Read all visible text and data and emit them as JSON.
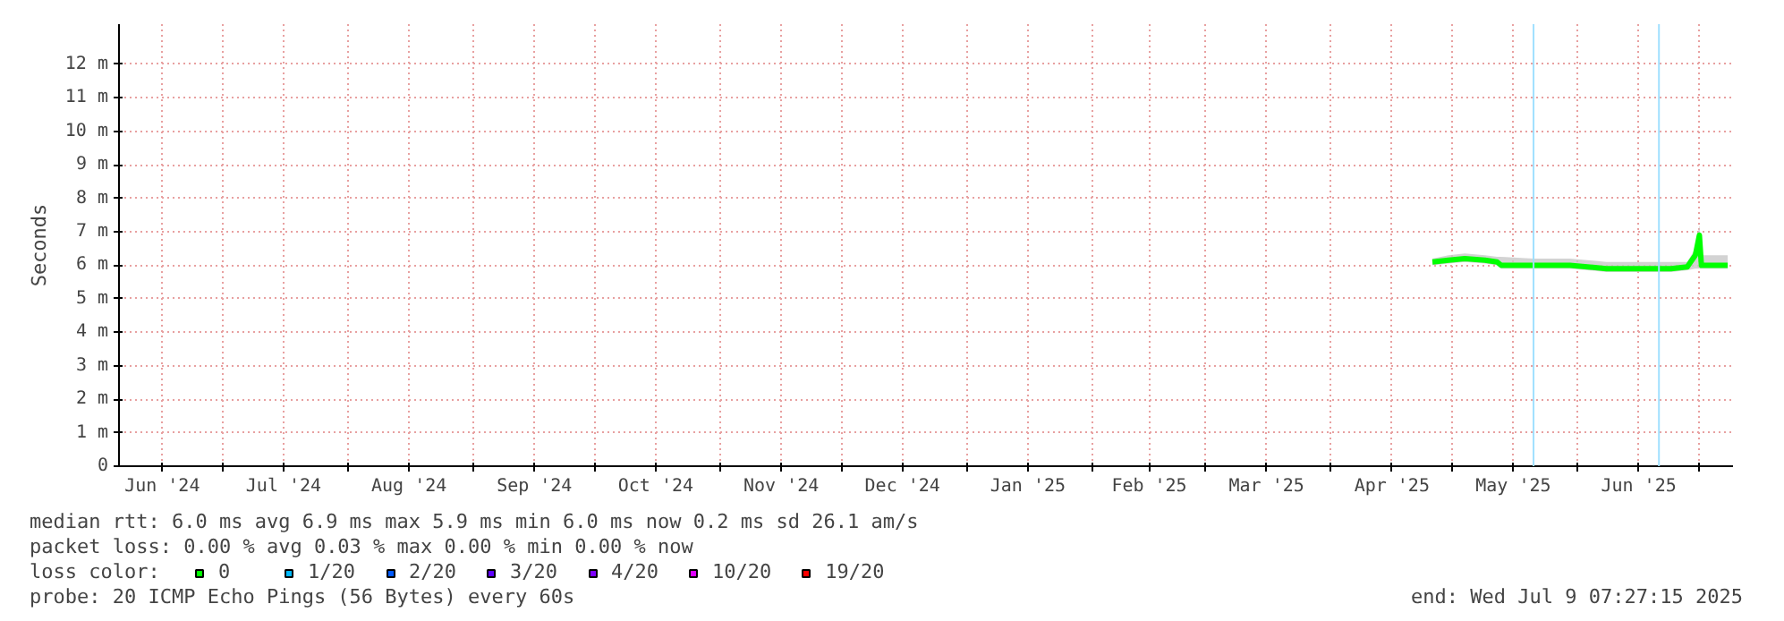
{
  "chart_data": {
    "type": "line",
    "ylabel": "Seconds",
    "xlim": [
      "2024-06-05T07:27",
      "2025-07-09T07:27"
    ],
    "xticks": [
      {
        "value": "2024-06-16",
        "label": "Jun '24"
      },
      {
        "value": "2024-07-01",
        "label": null
      },
      {
        "value": "2024-07-16",
        "label": "Jul '24"
      },
      {
        "value": "2024-08-01",
        "label": null
      },
      {
        "value": "2024-08-16",
        "label": "Aug '24"
      },
      {
        "value": "2024-09-01",
        "label": null
      },
      {
        "value": "2024-09-16",
        "label": "Sep '24"
      },
      {
        "value": "2024-10-01",
        "label": null
      },
      {
        "value": "2024-10-16",
        "label": "Oct '24"
      },
      {
        "value": "2024-11-01",
        "label": null
      },
      {
        "value": "2024-11-16",
        "label": "Nov '24"
      },
      {
        "value": "2024-12-01",
        "label": null
      },
      {
        "value": "2024-12-16",
        "label": "Dec '24"
      },
      {
        "value": "2025-01-01",
        "label": null
      },
      {
        "value": "2025-01-16",
        "label": "Jan '25"
      },
      {
        "value": "2025-02-01",
        "label": null
      },
      {
        "value": "2025-02-15",
        "label": "Feb '25"
      },
      {
        "value": "2025-03-01",
        "label": null
      },
      {
        "value": "2025-03-16",
        "label": "Mar '25"
      },
      {
        "value": "2025-04-01",
        "label": null
      },
      {
        "value": "2025-04-16",
        "label": "Apr '25"
      },
      {
        "value": "2025-05-01",
        "label": null
      },
      {
        "value": "2025-05-16",
        "label": "May '25"
      },
      {
        "value": "2025-06-01",
        "label": null
      },
      {
        "value": "2025-06-16",
        "label": "Jun '25"
      },
      {
        "value": "2025-07-01",
        "label": null
      }
    ],
    "ylim": [
      0,
      13.2
    ],
    "yticks": [
      0,
      {
        "value": 1,
        "label": "1 m"
      },
      {
        "value": 2,
        "label": "2 m"
      },
      {
        "value": 3,
        "label": "3 m"
      },
      {
        "value": 4,
        "label": "4 m"
      },
      {
        "value": 5,
        "label": "5 m"
      },
      {
        "value": 6,
        "label": "6 m"
      },
      {
        "value": 7,
        "label": "7 m"
      },
      {
        "value": 8,
        "label": "8 m"
      },
      {
        "value": 9,
        "label": "9 m"
      },
      {
        "value": 10,
        "label": "10 m"
      },
      {
        "value": 11,
        "label": "11 m"
      },
      {
        "value": 12,
        "label": "12 m"
      }
    ],
    "grid": true,
    "legend": "bottom",
    "legend_title": "loss color:",
    "series": [
      {
        "name": "0",
        "color": "#00ff00",
        "x": [
          "2025-04-26",
          "2025-04-30",
          "2025-05-04",
          "2025-05-09",
          "2025-05-12",
          "2025-05-13",
          "2025-05-21",
          "2025-05-30",
          "2025-06-08",
          "2025-06-17",
          "2025-06-24",
          "2025-06-28",
          "2025-06-30",
          "2025-07-01T00:00",
          "2025-07-01T12:00",
          "2025-07-08"
        ],
        "values": [
          6.1,
          6.15,
          6.2,
          6.15,
          6.1,
          6.0,
          6.0,
          6.0,
          5.9,
          5.9,
          5.9,
          5.95,
          6.3,
          6.9,
          6.0,
          6.0
        ],
        "lower": [
          6.0,
          6.05,
          6.1,
          6.05,
          6.0,
          5.9,
          5.9,
          5.9,
          5.8,
          5.8,
          5.8,
          5.85,
          5.9,
          5.9,
          5.9,
          5.9
        ],
        "upper": [
          6.2,
          6.3,
          6.35,
          6.3,
          6.25,
          6.25,
          6.2,
          6.2,
          6.1,
          6.1,
          6.1,
          6.1,
          6.5,
          7.2,
          6.3,
          6.3
        ]
      },
      {
        "name": "1/20",
        "color": "#00b8ff"
      },
      {
        "name": "2/20",
        "color": "#0059ff"
      },
      {
        "name": "3/20",
        "color": "#5e00ff"
      },
      {
        "name": "4/20",
        "color": "#7e00ff"
      },
      {
        "name": "10/20",
        "color": "#dd00ff"
      },
      {
        "name": "19/20",
        "color": "#ff0000"
      }
    ],
    "ref_lines": [
      {
        "axis": "x",
        "value": "2025-05-21",
        "color": "#a0e0ff"
      },
      {
        "axis": "x",
        "value": "2025-06-21",
        "color": "#a0e0ff"
      }
    ],
    "annotations": [
      "median rtt:  6.0 ms avg  6.9 ms max  5.9 ms min  6.0 ms now  0.2 ms sd  26.1   am/s",
      "packet loss: 0.00 % avg  0.03 % max  0.00 % min  0.00 % now",
      "probe:       20 ICMP Echo Pings (56 Bytes) every 60s",
      "end: Wed Jul  9 07:27:15 2025"
    ]
  }
}
